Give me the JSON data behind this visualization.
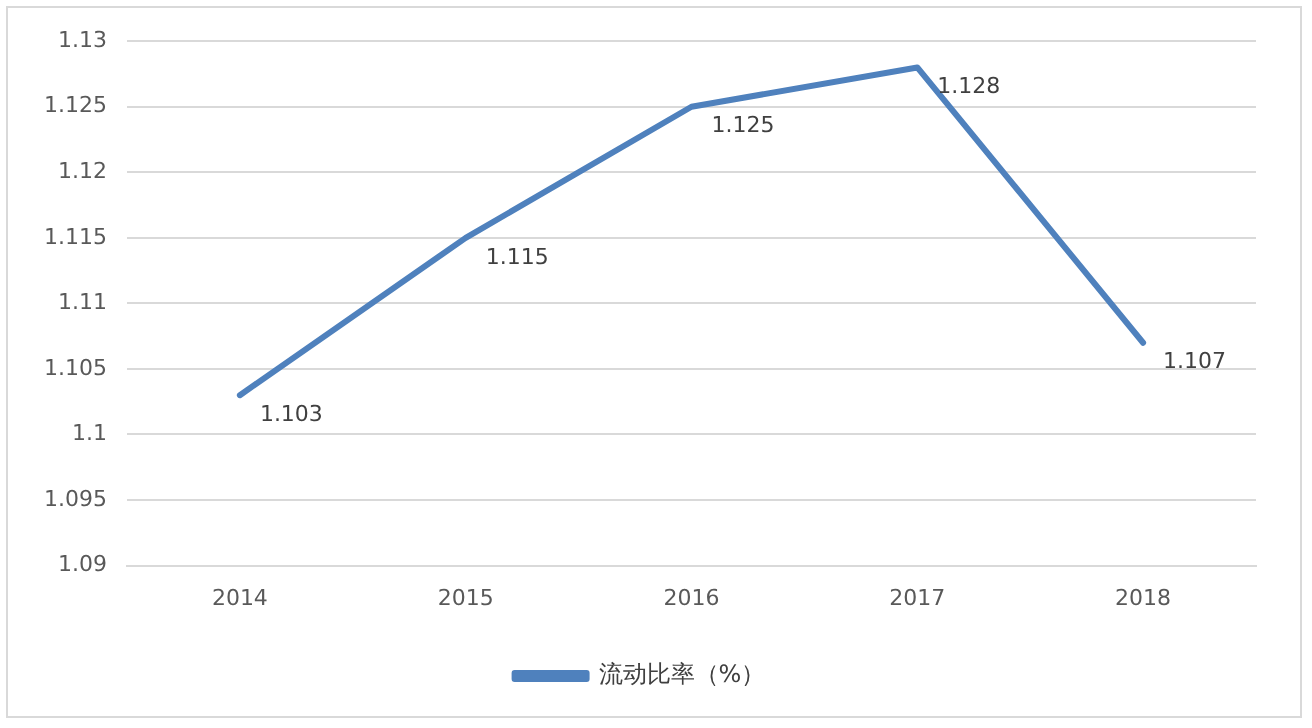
{
  "chart_data": {
    "type": "line",
    "categories": [
      "2014",
      "2015",
      "2016",
      "2017",
      "2018"
    ],
    "series": [
      {
        "name": "流动比率（%）",
        "color": "#4f81bd",
        "values": [
          1.103,
          1.115,
          1.125,
          1.128,
          1.107
        ]
      }
    ],
    "ylim": [
      1.09,
      1.13
    ],
    "yticks": [
      1.09,
      1.095,
      1.1,
      1.105,
      1.11,
      1.115,
      1.12,
      1.125,
      1.13
    ],
    "grid": "y",
    "legend": "bottom",
    "data_labels": true,
    "marker": "none",
    "line_style": "solid"
  }
}
